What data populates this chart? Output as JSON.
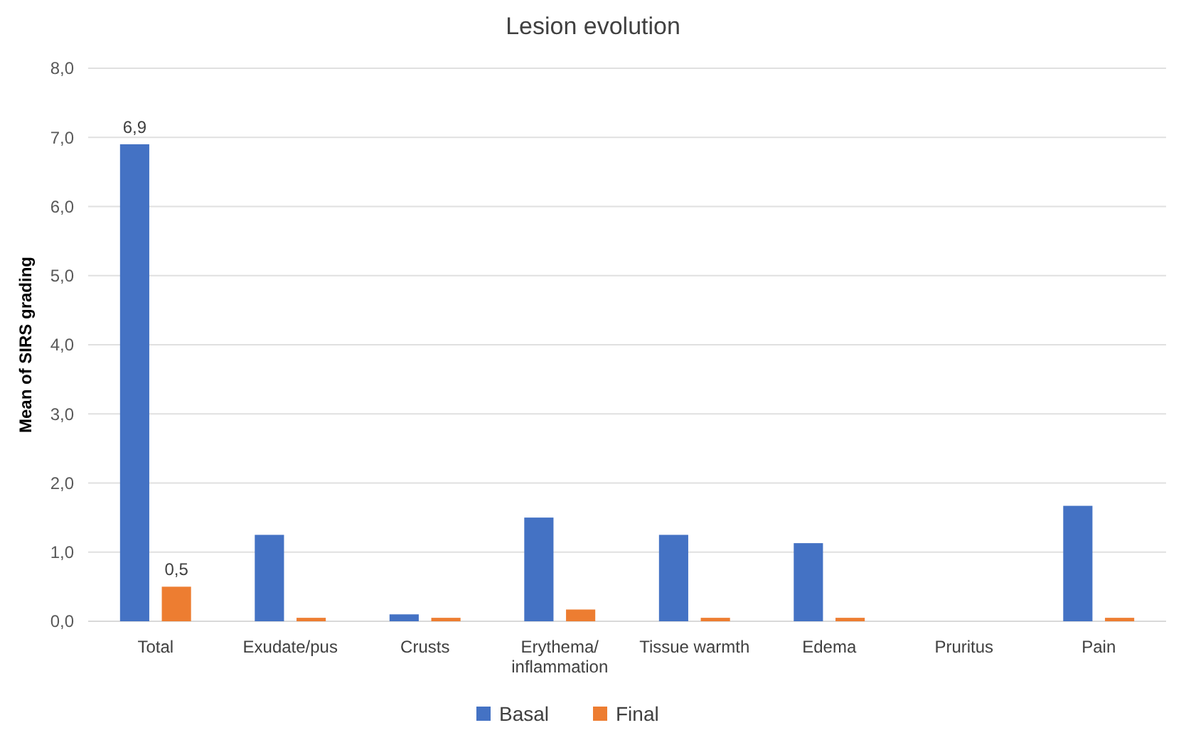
{
  "chart_data": {
    "type": "bar",
    "title": "Lesion evolution",
    "ylabel": "Mean of SIRS grading",
    "categories": [
      "Total",
      "Exudate/pus",
      "Crusts",
      "Erythema/ inflammation",
      "Tissue warmth",
      "Edema",
      "Pruritus",
      "Pain"
    ],
    "series": [
      {
        "name": "Basal",
        "color": "#4472c4",
        "values": [
          6.9,
          1.25,
          0.1,
          1.5,
          1.25,
          1.13,
          0,
          1.67
        ],
        "value_labels": [
          "6,9",
          null,
          null,
          null,
          null,
          null,
          null,
          null
        ]
      },
      {
        "name": "Final",
        "color": "#ed7d31",
        "values": [
          0.5,
          0.05,
          0.05,
          0.17,
          0.05,
          0.05,
          0,
          0.05
        ],
        "value_labels": [
          "0,5",
          null,
          null,
          null,
          null,
          null,
          null,
          null
        ]
      }
    ],
    "ylim": [
      0,
      8
    ],
    "yticks": [
      {
        "value": 0,
        "label": "0,0"
      },
      {
        "value": 1,
        "label": "1,0"
      },
      {
        "value": 2,
        "label": "2,0"
      },
      {
        "value": 3,
        "label": "3,0"
      },
      {
        "value": 4,
        "label": "4,0"
      },
      {
        "value": 5,
        "label": "5,0"
      },
      {
        "value": 6,
        "label": "6,0"
      },
      {
        "value": 7,
        "label": "7,0"
      },
      {
        "value": 8,
        "label": "8,0"
      }
    ],
    "grid": "y",
    "legend": "bottom"
  }
}
